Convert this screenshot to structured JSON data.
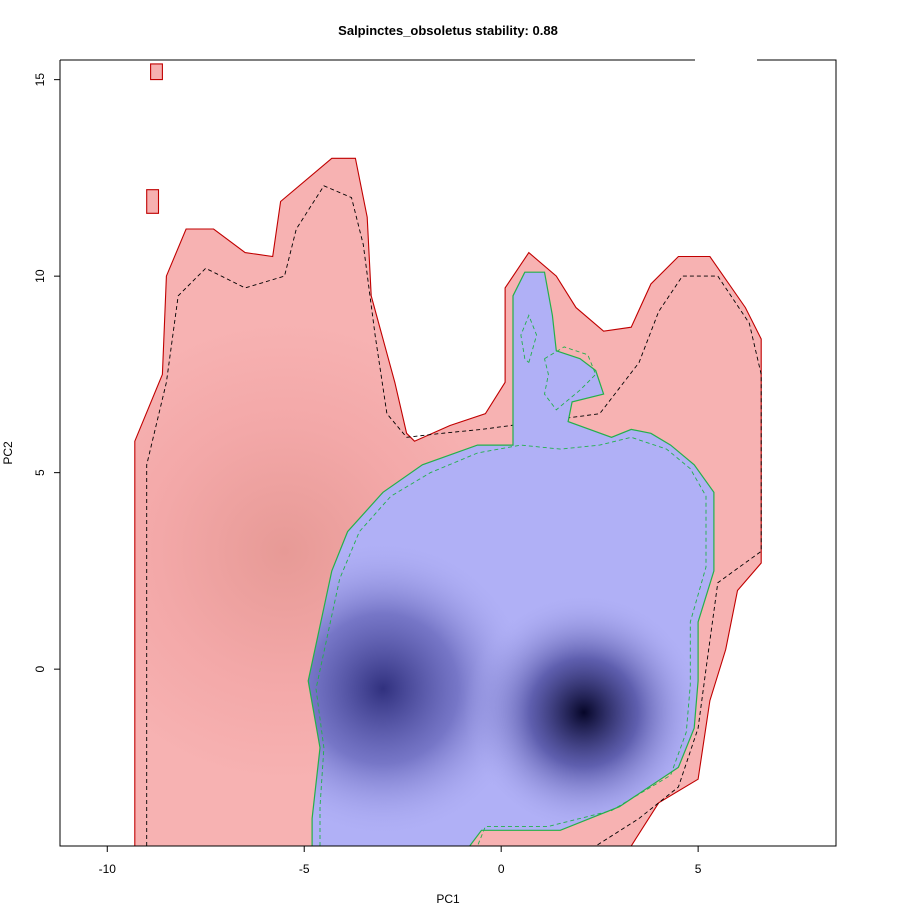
{
  "chart_data": {
    "type": "heatmap",
    "title": "Salpinctes_obsoletus stability: 0.88",
    "xlabel": "PC1",
    "ylabel": "PC2",
    "xlim": [
      -11.2,
      8.5
    ],
    "ylim": [
      -4.5,
      15.5
    ],
    "x_ticks": [
      -10,
      -5,
      0,
      5
    ],
    "y_ticks": [
      0,
      5,
      10,
      15
    ],
    "grid": false,
    "legend": "none",
    "colors": {
      "background_density": "#f6b0b0",
      "background_boundary": "#c00000",
      "occurrence_density_light": "#b0b0f6",
      "occurrence_density_dark": "#0a0a40",
      "occurrence_boundary": "#22b04a"
    },
    "series": [
      {
        "role": "background",
        "outer_contour": [
          [
            -9.3,
            -4.5
          ],
          [
            -9.3,
            2.0
          ],
          [
            -9.3,
            5.8
          ],
          [
            -8.6,
            7.5
          ],
          [
            -8.5,
            10.0
          ],
          [
            -8.0,
            11.2
          ],
          [
            -7.3,
            11.2
          ],
          [
            -6.5,
            10.6
          ],
          [
            -5.8,
            10.5
          ],
          [
            -5.6,
            11.9
          ],
          [
            -4.3,
            13.0
          ],
          [
            -3.7,
            13.0
          ],
          [
            -3.4,
            11.5
          ],
          [
            -3.3,
            9.5
          ],
          [
            -2.7,
            7.3
          ],
          [
            -2.4,
            6.0
          ],
          [
            -2.2,
            5.8
          ],
          [
            -1.3,
            6.2
          ],
          [
            -0.4,
            6.5
          ],
          [
            0.1,
            7.3
          ],
          [
            0.1,
            9.7
          ],
          [
            0.7,
            10.6
          ],
          [
            1.4,
            10.0
          ],
          [
            1.9,
            9.2
          ],
          [
            2.6,
            8.6
          ],
          [
            3.3,
            8.7
          ],
          [
            3.8,
            9.8
          ],
          [
            4.5,
            10.5
          ],
          [
            5.3,
            10.5
          ],
          [
            6.2,
            9.2
          ],
          [
            6.6,
            8.4
          ],
          [
            6.6,
            2.7
          ],
          [
            6.0,
            2.0
          ],
          [
            5.7,
            0.5
          ],
          [
            5.3,
            -0.8
          ],
          [
            5.0,
            -2.8
          ],
          [
            4.0,
            -3.4
          ],
          [
            3.3,
            -4.5
          ]
        ],
        "inner_contour": [
          [
            -9.0,
            -4.5
          ],
          [
            -9.0,
            2.0
          ],
          [
            -9.0,
            5.2
          ],
          [
            -8.5,
            7.3
          ],
          [
            -8.2,
            9.5
          ],
          [
            -7.5,
            10.2
          ],
          [
            -6.5,
            9.7
          ],
          [
            -5.5,
            10.0
          ],
          [
            -5.2,
            11.2
          ],
          [
            -4.5,
            12.3
          ],
          [
            -3.8,
            12.0
          ],
          [
            -3.5,
            10.8
          ],
          [
            -3.2,
            8.5
          ],
          [
            -2.9,
            6.5
          ],
          [
            -2.4,
            5.9
          ],
          [
            -1.5,
            6.0
          ],
          [
            -0.5,
            6.1
          ],
          [
            2.5,
            6.5
          ],
          [
            3.5,
            7.8
          ],
          [
            4.0,
            9.1
          ],
          [
            4.6,
            10.0
          ],
          [
            5.5,
            10.0
          ],
          [
            6.3,
            8.8
          ],
          [
            6.6,
            7.5
          ],
          [
            6.6,
            3.0
          ],
          [
            5.5,
            2.2
          ],
          [
            5.2,
            0.0
          ],
          [
            5.0,
            -1.5
          ],
          [
            4.5,
            -3.0
          ],
          [
            3.5,
            -3.8
          ],
          [
            2.4,
            -4.5
          ]
        ],
        "density_peak": [
          -5.5,
          3.0
        ]
      },
      {
        "role": "occurrence",
        "outer_contour": [
          [
            -4.8,
            -4.5
          ],
          [
            -4.8,
            -3.8
          ],
          [
            -4.6,
            -2.0
          ],
          [
            -4.9,
            -0.3
          ],
          [
            -4.3,
            2.5
          ],
          [
            -3.9,
            3.5
          ],
          [
            -3.0,
            4.5
          ],
          [
            -2.0,
            5.2
          ],
          [
            -0.6,
            5.7
          ],
          [
            0.3,
            5.7
          ],
          [
            0.3,
            7.5
          ],
          [
            0.3,
            9.5
          ],
          [
            0.6,
            10.1
          ],
          [
            1.1,
            10.1
          ],
          [
            1.3,
            9.0
          ],
          [
            1.4,
            8.1
          ],
          [
            2.0,
            7.9
          ],
          [
            2.4,
            7.6
          ],
          [
            2.6,
            7.0
          ],
          [
            1.8,
            6.8
          ],
          [
            1.7,
            6.3
          ],
          [
            2.8,
            5.9
          ],
          [
            3.3,
            6.1
          ],
          [
            3.8,
            6.0
          ],
          [
            4.3,
            5.7
          ],
          [
            4.9,
            5.2
          ],
          [
            5.4,
            4.5
          ],
          [
            5.4,
            2.5
          ],
          [
            5.0,
            1.2
          ],
          [
            5.0,
            -0.3
          ],
          [
            4.9,
            -1.5
          ],
          [
            4.5,
            -2.5
          ],
          [
            3.0,
            -3.5
          ],
          [
            1.5,
            -4.1
          ],
          [
            -0.5,
            -4.1
          ],
          [
            -0.8,
            -4.5
          ]
        ],
        "inner_contour": [
          [
            -4.6,
            -4.5
          ],
          [
            -4.6,
            -3.5
          ],
          [
            -4.5,
            -2.0
          ],
          [
            -4.7,
            -0.5
          ],
          [
            -4.1,
            2.3
          ],
          [
            -3.6,
            3.5
          ],
          [
            -2.8,
            4.4
          ],
          [
            -1.8,
            5.0
          ],
          [
            -0.6,
            5.5
          ],
          [
            0.5,
            5.7
          ],
          [
            1.5,
            5.6
          ],
          [
            2.5,
            5.7
          ],
          [
            3.3,
            5.9
          ],
          [
            4.2,
            5.6
          ],
          [
            4.8,
            5.1
          ],
          [
            5.2,
            4.4
          ],
          [
            5.2,
            2.6
          ],
          [
            4.8,
            1.2
          ],
          [
            4.8,
            -0.4
          ],
          [
            4.7,
            -1.6
          ],
          [
            4.3,
            -2.7
          ],
          [
            2.8,
            -3.6
          ],
          [
            1.2,
            -4.0
          ],
          [
            -0.4,
            -4.0
          ],
          [
            -0.6,
            -4.5
          ]
        ],
        "density_peaks": [
          [
            -3.0,
            -0.5
          ],
          [
            2.1,
            -1.1
          ]
        ]
      }
    ]
  }
}
